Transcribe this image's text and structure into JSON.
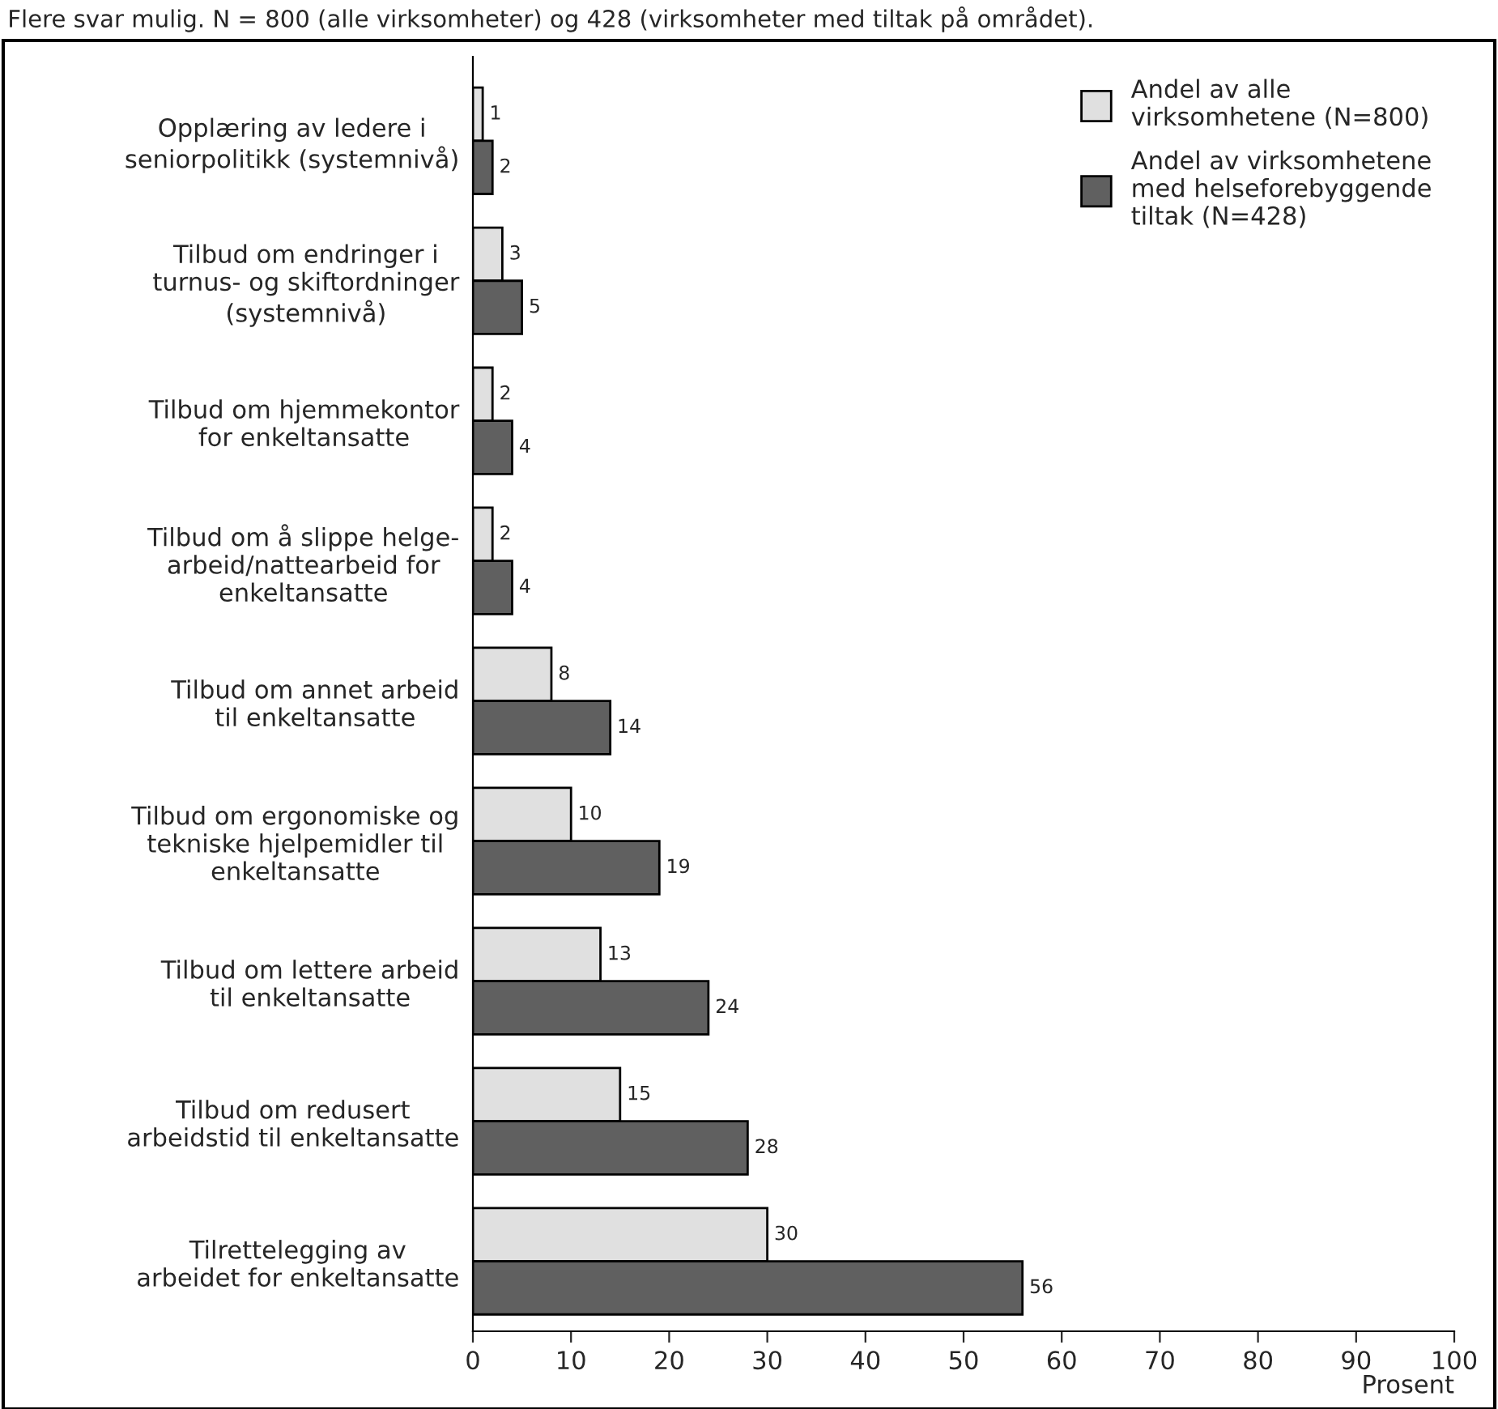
{
  "chart_data": {
    "type": "bar",
    "orientation": "horizontal",
    "subtitle": "Flere svar mulig. N = 800 (alle virksomheter) og 428 (virksomheter med tiltak på området).",
    "xlabel": "Prosent",
    "categories": [
      "Opplæring av ledere i\nseniorpolitikk (systemnivå)",
      "Tilbud om endringer i\nturnus- og skiftordninger\n(systemnivå)",
      "Tilbud om hjemmekontor\nfor enkeltansatte",
      "Tilbud om å slippe helge-\narbeid/nattearbeid for\nenkeltansatte",
      "Tilbud om annet arbeid\ntil enkeltansatte",
      "Tilbud om ergonomiske og\ntekniske hjelpemidler til\nenkeltansatte",
      "Tilbud om lettere arbeid\ntil enkeltansatte",
      "Tilbud om redusert\narbeidstid til enkeltansatte",
      "Tilrettelegging av\narbeidet for enkeltansatte"
    ],
    "series": [
      {
        "name": "Andel av alle\nvirksomhetene (N=800)",
        "color": "#e0e0e0",
        "values": [
          1,
          3,
          2,
          2,
          8,
          10,
          13,
          15,
          30
        ]
      },
      {
        "name": "Andel av virksomhetene\nmed helseforebyggende\ntiltak (N=428)",
        "color": "#606060",
        "values": [
          2,
          5,
          4,
          4,
          14,
          19,
          24,
          28,
          56
        ]
      }
    ],
    "xlim": [
      0,
      100
    ],
    "xticks": [
      0,
      10,
      20,
      30,
      40,
      50,
      60,
      70,
      80,
      90,
      100
    ],
    "data_labels": true,
    "legend": "top right",
    "grid": false
  }
}
